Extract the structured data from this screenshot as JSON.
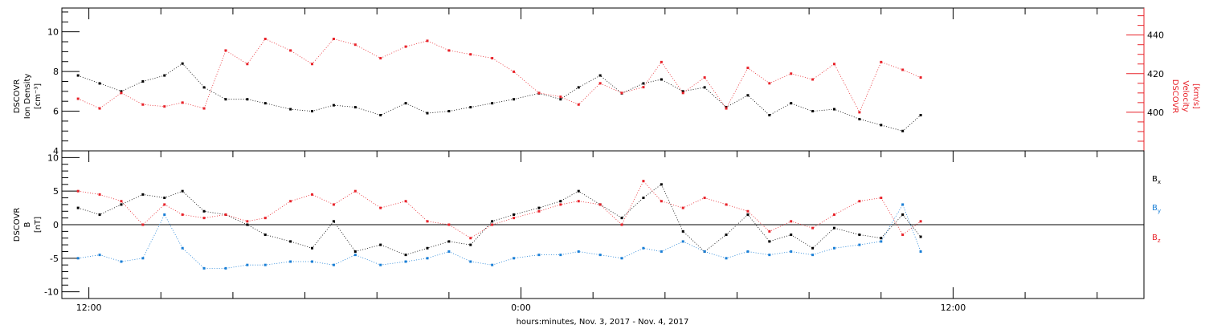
{
  "colors": {
    "black": "#000000",
    "red": "#e8232a",
    "blue": "#1a7fd6",
    "axis": "#000000"
  },
  "chart_data": [
    {
      "type": "scatter",
      "panel": "top",
      "ylabel_left": [
        "DSCOVR",
        "Ion Density",
        "[cm⁻³]"
      ],
      "ylabel_right": [
        "DSCOVR",
        "Velocity",
        "[km/s]"
      ],
      "ylim_left": [
        4,
        11.2
      ],
      "ylim_right": [
        380,
        454
      ],
      "yticks_left": [
        4,
        6,
        8,
        10
      ],
      "yticks_right": [
        400,
        420,
        440
      ],
      "x_unit": "hours since Nov. 3 2017 00:00",
      "series": [
        {
          "axis": "left",
          "color": "black",
          "x": [
            11.7,
            12.3,
            12.9,
            13.5,
            14.1,
            14.6,
            15.2,
            15.8,
            16.4,
            16.9,
            17.6,
            18.2,
            18.8,
            19.4,
            20.1,
            20.8,
            21.4,
            22.0,
            22.6,
            23.2,
            23.8,
            24.5,
            25.1,
            25.6,
            26.2,
            26.8,
            27.4,
            27.9,
            28.5,
            29.1,
            29.7,
            30.3,
            30.9,
            31.5,
            32.1,
            32.7,
            33.4,
            34.0,
            34.6,
            35.1
          ],
          "y": [
            7.8,
            7.4,
            7.0,
            7.5,
            7.8,
            8.4,
            7.2,
            6.6,
            6.6,
            6.4,
            6.1,
            6.0,
            6.3,
            6.2,
            5.8,
            6.4,
            5.9,
            6.0,
            6.2,
            6.4,
            6.6,
            6.9,
            6.6,
            7.2,
            7.8,
            6.9,
            7.4,
            7.6,
            7.0,
            7.2,
            6.2,
            6.8,
            5.8,
            6.4,
            6.0,
            6.1,
            5.6,
            5.3,
            5.0,
            5.8
          ]
        },
        {
          "axis": "right",
          "color": "red",
          "x": [
            11.7,
            12.3,
            12.9,
            13.5,
            14.1,
            14.6,
            15.2,
            15.8,
            16.4,
            16.9,
            17.6,
            18.2,
            18.8,
            19.4,
            20.1,
            20.8,
            21.4,
            22.0,
            22.6,
            23.2,
            23.8,
            24.5,
            25.1,
            25.6,
            26.2,
            26.8,
            27.4,
            27.9,
            28.5,
            29.1,
            29.7,
            30.3,
            30.9,
            31.5,
            32.1,
            32.7,
            33.4,
            34.0,
            34.6,
            35.1
          ],
          "y": [
            407,
            402,
            410,
            404,
            403,
            405,
            402,
            432,
            425,
            438,
            432,
            425,
            438,
            435,
            428,
            434,
            437,
            432,
            430,
            428,
            421,
            410,
            408,
            404,
            415,
            410,
            413,
            426,
            410,
            418,
            402,
            423,
            415,
            420,
            417,
            425,
            400,
            426,
            422,
            418
          ]
        }
      ]
    },
    {
      "type": "scatter",
      "panel": "bottom",
      "ylabel_left": [
        "DSCOVR",
        "B",
        "[nT]"
      ],
      "ylim": [
        -11,
        11
      ],
      "yticks": [
        -10,
        -5,
        0,
        5,
        10
      ],
      "legend_placement": "right",
      "x_unit": "hours since Nov. 3 2017 00:00",
      "series": [
        {
          "name": "Bx",
          "legend_main": "B",
          "legend_sub": "x",
          "color": "black",
          "x": [
            11.7,
            12.3,
            12.9,
            13.5,
            14.1,
            14.6,
            15.2,
            15.8,
            16.4,
            16.9,
            17.6,
            18.2,
            18.8,
            19.4,
            20.1,
            20.8,
            21.4,
            22.0,
            22.6,
            23.2,
            23.8,
            24.5,
            25.1,
            25.6,
            26.2,
            26.8,
            27.4,
            27.9,
            28.5,
            29.1,
            29.7,
            30.3,
            30.9,
            31.5,
            32.1,
            32.7,
            33.4,
            34.0,
            34.6,
            35.1
          ],
          "y": [
            2.5,
            1.5,
            3.0,
            4.5,
            4.0,
            5.0,
            2.0,
            1.5,
            0.0,
            -1.5,
            -2.5,
            -3.5,
            0.5,
            -4.0,
            -3.0,
            -4.5,
            -3.5,
            -2.5,
            -3.0,
            0.5,
            1.5,
            2.5,
            3.5,
            5.0,
            3.0,
            1.0,
            4.0,
            6.0,
            -1.0,
            -4.0,
            -1.5,
            1.5,
            -2.5,
            -1.5,
            -3.5,
            -0.5,
            -1.5,
            -2.0,
            1.5,
            -1.8
          ]
        },
        {
          "name": "By",
          "legend_main": "B",
          "legend_sub": "y",
          "color": "blue",
          "x": [
            11.7,
            12.3,
            12.9,
            13.5,
            14.1,
            14.6,
            15.2,
            15.8,
            16.4,
            16.9,
            17.6,
            18.2,
            18.8,
            19.4,
            20.1,
            20.8,
            21.4,
            22.0,
            22.6,
            23.2,
            23.8,
            24.5,
            25.1,
            25.6,
            26.2,
            26.8,
            27.4,
            27.9,
            28.5,
            29.1,
            29.7,
            30.3,
            30.9,
            31.5,
            32.1,
            32.7,
            33.4,
            34.0,
            34.6,
            35.1
          ],
          "y": [
            -5.0,
            -4.5,
            -5.5,
            -5.0,
            1.5,
            -3.5,
            -6.5,
            -6.5,
            -6.0,
            -6.0,
            -5.5,
            -5.5,
            -6.0,
            -4.5,
            -6.0,
            -5.5,
            -5.0,
            -4.0,
            -5.5,
            -6.0,
            -5.0,
            -4.5,
            -4.5,
            -4.0,
            -4.5,
            -5.0,
            -3.5,
            -4.0,
            -2.5,
            -4.0,
            -5.0,
            -4.0,
            -4.5,
            -4.0,
            -4.5,
            -3.5,
            -3.0,
            -2.5,
            3.0,
            -4.0
          ]
        },
        {
          "name": "Bz",
          "legend_main": "B",
          "legend_sub": "z",
          "color": "red",
          "x": [
            11.7,
            12.3,
            12.9,
            13.5,
            14.1,
            14.6,
            15.2,
            15.8,
            16.4,
            16.9,
            17.6,
            18.2,
            18.8,
            19.4,
            20.1,
            20.8,
            21.4,
            22.0,
            22.6,
            23.2,
            23.8,
            24.5,
            25.1,
            25.6,
            26.2,
            26.8,
            27.4,
            27.9,
            28.5,
            29.1,
            29.7,
            30.3,
            30.9,
            31.5,
            32.1,
            32.7,
            33.4,
            34.0,
            34.6,
            35.1
          ],
          "y": [
            5.0,
            4.5,
            3.5,
            0.0,
            3.0,
            1.5,
            1.0,
            1.5,
            0.5,
            1.0,
            3.5,
            4.5,
            3.0,
            5.0,
            2.5,
            3.5,
            0.5,
            0.0,
            -2.0,
            0.0,
            1.0,
            2.0,
            3.0,
            3.5,
            3.0,
            0.0,
            6.5,
            3.5,
            2.5,
            4.0,
            3.0,
            2.0,
            -1.0,
            0.5,
            -0.5,
            1.5,
            3.5,
            4.0,
            -1.5,
            0.5
          ]
        }
      ]
    }
  ],
  "x_axis": {
    "label": "hours:minutes, Nov.  3, 2017 - Nov.  4, 2017",
    "xlim": [
      11.25,
      41.3
    ],
    "major_ticks": [
      {
        "hour": 12,
        "label": "12:00"
      },
      {
        "hour": 24,
        "label": "0:00"
      },
      {
        "hour": 36,
        "label": "12:00"
      }
    ],
    "minor_tick_step_hours": 2
  }
}
